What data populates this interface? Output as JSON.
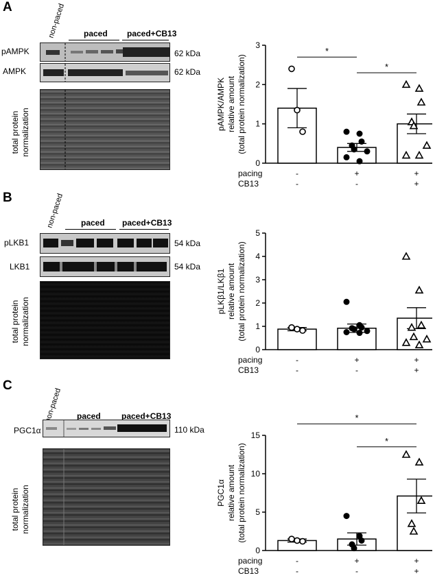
{
  "panels": [
    {
      "label": "A",
      "non_paced": "non-paced",
      "groups": [
        "paced",
        "paced+CB13"
      ],
      "rows": [
        {
          "name": "pAMPK",
          "kda": "62 kDa"
        },
        {
          "name": "AMPK",
          "kda": "62 kDa"
        }
      ],
      "total_protein": [
        "total protein",
        "normalization"
      ]
    },
    {
      "label": "B",
      "non_paced": "non-paced",
      "groups": [
        "paced",
        "paced+CB13"
      ],
      "rows": [
        {
          "name": "pLKB1",
          "kda": "54 kDa"
        },
        {
          "name": "LKB1",
          "kda": "54 kDa"
        }
      ],
      "total_protein": [
        "total protein",
        "normalization"
      ]
    },
    {
      "label": "C",
      "non_paced": "non-paced",
      "groups": [
        "paced",
        "paced+CB13"
      ],
      "rows": [
        {
          "name": "PGC1α",
          "kda": "110 kDa"
        }
      ],
      "total_protein": [
        "total protein",
        "normalization"
      ]
    }
  ],
  "chart_data": [
    {
      "type": "bar",
      "ylabel": [
        "pAMPK/AMPK",
        "relative amount",
        "(total protein normalization)"
      ],
      "ylim": [
        0,
        3
      ],
      "yticks": [
        0,
        1,
        2,
        3
      ],
      "categories": [
        "non-paced",
        "paced",
        "paced+CB13"
      ],
      "conditions": {
        "pacing": [
          "-",
          "+",
          "+"
        ],
        "CB13": [
          "-",
          "-",
          "+"
        ]
      },
      "values": [
        1.4,
        0.4,
        1.0
      ],
      "sem": [
        0.5,
        0.1,
        0.25
      ],
      "points": [
        [
          2.4,
          1.35,
          0.8
        ],
        [
          0.8,
          0.75,
          0.55,
          0.45,
          0.35,
          0.3,
          0.15,
          0.05
        ],
        [
          2.0,
          1.9,
          1.55,
          1.05,
          0.95,
          0.45,
          0.2,
          0.2
        ]
      ],
      "markers": [
        "circle-open",
        "circle-filled",
        "triangle-open"
      ],
      "significance": [
        {
          "from": 0,
          "to": 1,
          "label": "*",
          "y": 2.7
        },
        {
          "from": 1,
          "to": 2,
          "label": "*",
          "y": 2.3
        }
      ]
    },
    {
      "type": "bar",
      "ylabel": [
        "pLKβ1/LKβ1",
        "relative amount",
        "(total protein normalization)"
      ],
      "ylim": [
        0,
        5
      ],
      "yticks": [
        0,
        1,
        2,
        3,
        4,
        5
      ],
      "categories": [
        "non-paced",
        "paced",
        "paced+CB13"
      ],
      "conditions": {
        "pacing": [
          "-",
          "+",
          "+"
        ],
        "CB13": [
          "-",
          "-",
          "+"
        ]
      },
      "values": [
        0.88,
        0.92,
        1.35
      ],
      "sem": [
        0.07,
        0.18,
        0.45
      ],
      "points": [
        [
          0.95,
          0.88,
          0.82
        ],
        [
          2.05,
          1.05,
          0.95,
          0.92,
          0.88,
          0.8,
          0.75,
          0.72
        ],
        [
          4.0,
          2.55,
          1.05,
          0.95,
          0.55,
          0.45,
          0.3,
          0.2
        ]
      ],
      "markers": [
        "circle-open",
        "circle-filled",
        "triangle-open"
      ],
      "significance": []
    },
    {
      "type": "bar",
      "ylabel": [
        "PGC1α",
        "relative amount",
        "(total protein normalization)"
      ],
      "ylim": [
        0,
        15
      ],
      "yticks": [
        0,
        5,
        10,
        15
      ],
      "categories": [
        "non-paced",
        "paced",
        "paced+CB13"
      ],
      "conditions": {
        "pacing": [
          "-",
          "+",
          "+"
        ],
        "CB13": [
          "-",
          "-",
          "+"
        ]
      },
      "values": [
        1.3,
        1.5,
        7.1
      ],
      "sem": [
        0.2,
        0.8,
        2.2
      ],
      "points": [
        [
          1.5,
          1.3,
          1.2
        ],
        [
          4.5,
          1.9,
          1.3,
          0.8,
          0.3
        ],
        [
          12.5,
          11.5,
          6.5,
          3.5,
          2.5
        ]
      ],
      "markers": [
        "circle-open",
        "circle-filled",
        "triangle-open"
      ],
      "significance": [
        {
          "from": 0,
          "to": 2,
          "label": "*",
          "y": 16.5
        },
        {
          "from": 1,
          "to": 2,
          "label": "*",
          "y": 13.5
        }
      ]
    }
  ],
  "condition_labels": [
    "pacing",
    "CB13"
  ]
}
